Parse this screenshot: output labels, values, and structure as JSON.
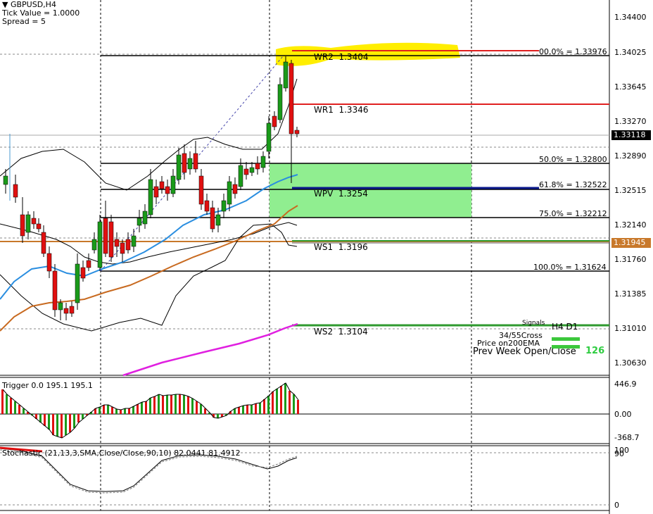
{
  "header": {
    "symbol": "GBPUSD,H4",
    "tick_value": "Tick Value = 1.0000",
    "spread": "Spread = 5"
  },
  "price_axis": [
    "1.34400",
    "1.34025",
    "1.33645",
    "1.33270",
    "1.32890",
    "1.32515",
    "1.32140",
    "1.31760",
    "1.31385",
    "1.31010",
    "1.30630"
  ],
  "current_price": "1.33118",
  "prev_price_box": "1.31945",
  "pivots": {
    "wr2": {
      "label": "WR2",
      "value": "1.3404"
    },
    "wr1": {
      "label": "WR1",
      "value": "1.3346"
    },
    "wpv": {
      "label": "WPV",
      "value": "1.3254"
    },
    "ws1": {
      "label": "WS1",
      "value": "1.3196"
    },
    "ws2": {
      "label": "WS2",
      "value": "1.3104"
    }
  },
  "fibonacci": {
    "f0": "00.0% = 1.33976",
    "f50": "50.0% = 1.32800",
    "f618": "61.8% = 1.32522",
    "f75": "75.0% = 1.32212",
    "f100": "100.0% = 1.31624"
  },
  "signals": {
    "title": "Signals",
    "timeframes": "H4  D1",
    "cross": "34/55Cross",
    "ema": "Price on200EMA",
    "prev_week": "Prev Week Open/Close",
    "prev_week_value": "126",
    "colors": {
      "on": "#3cc83c",
      "value": "#2ecc40"
    }
  },
  "trigger": {
    "title": "Trigger 0.0 195.1 195.1",
    "axis_top": "446.9",
    "axis_mid": "0.00",
    "axis_bottom": "-368.7"
  },
  "stochastic": {
    "title": "Stochastic (21,13,3,SMA,Close/Close,90,10) 82.0441 81.4912",
    "axis_top": "100",
    "axis_top2": "90",
    "axis_bottom": "0"
  },
  "colors": {
    "bull": "#1a9a1a",
    "bear": "#e01010",
    "pivot_red": "#e02020",
    "pivot_blue": "#0b1a8c",
    "pivot_orange": "#c8782a",
    "pivot_green": "#2f9a2f",
    "zone_green": "#90ee90",
    "highlight": "#ffee00",
    "ema_blue": "#2a8ee0",
    "ema_orange": "#c86a20",
    "ema_magenta": "#e020e0"
  }
}
